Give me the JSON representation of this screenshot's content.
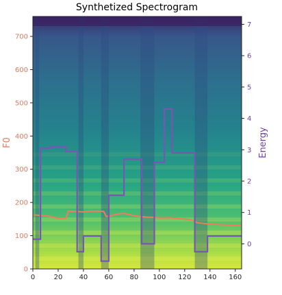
{
  "chart_data": {
    "type": "line",
    "title": "Synthetized Spectrogram",
    "xlabel": "",
    "ylabel_left": "F0",
    "ylabel_right": "Energy",
    "xlim": [
      0,
      165
    ],
    "ylim_left": [
      0,
      760
    ],
    "ylim_right": [
      -0.8,
      7.25
    ],
    "x_ticks": [
      0,
      20,
      40,
      60,
      80,
      100,
      120,
      140,
      160
    ],
    "y_left_ticks": [
      0,
      100,
      200,
      300,
      400,
      500,
      600,
      700
    ],
    "y_right_ticks": [
      0,
      1,
      2,
      3,
      4,
      5,
      6,
      7
    ],
    "grid": false,
    "colors": {
      "f0": "#f07c5c",
      "energy": "#7a55b5",
      "left_axis_text": "#e07a5f",
      "right_axis_text": "#6a3fa8"
    },
    "background": "spectrogram (viridis colormap)",
    "series": [
      {
        "axis": "left",
        "points": [
          [
            0,
            163
          ],
          [
            12,
            159
          ],
          [
            20,
            152
          ],
          [
            26,
            152
          ],
          [
            28,
            174
          ],
          [
            34,
            173
          ],
          [
            40,
            172
          ],
          [
            50,
            174
          ],
          [
            56,
            173
          ],
          [
            58,
            158
          ],
          [
            62,
            160
          ],
          [
            66,
            165
          ],
          [
            72,
            167
          ],
          [
            76,
            164
          ],
          [
            80,
            160
          ],
          [
            84,
            158
          ],
          [
            90,
            156
          ],
          [
            96,
            155
          ],
          [
            102,
            153
          ],
          [
            108,
            154
          ],
          [
            114,
            152
          ],
          [
            120,
            150
          ],
          [
            126,
            147
          ],
          [
            130,
            139
          ],
          [
            140,
            135
          ],
          [
            150,
            133
          ],
          [
            165,
            130
          ]
        ]
      },
      {
        "axis": "right",
        "steps": [
          [
            0,
            0.15
          ],
          [
            6,
            0.15
          ],
          [
            6,
            3.05
          ],
          [
            14,
            3.05
          ],
          [
            14,
            3.1
          ],
          [
            26,
            3.1
          ],
          [
            26,
            2.95
          ],
          [
            35,
            2.95
          ],
          [
            35,
            -0.25
          ],
          [
            40,
            -0.25
          ],
          [
            40,
            0.25
          ],
          [
            54,
            0.25
          ],
          [
            54,
            -0.55
          ],
          [
            60,
            -0.55
          ],
          [
            60,
            1.55
          ],
          [
            72,
            1.55
          ],
          [
            72,
            2.7
          ],
          [
            86,
            2.7
          ],
          [
            86,
            0
          ],
          [
            96,
            0
          ],
          [
            96,
            2.6
          ],
          [
            104,
            2.6
          ],
          [
            104,
            4.3
          ],
          [
            110,
            4.3
          ],
          [
            110,
            2.9
          ],
          [
            128,
            2.9
          ],
          [
            128,
            -0.25
          ],
          [
            138,
            -0.25
          ],
          [
            138,
            0.25
          ],
          [
            165,
            0.25
          ]
        ]
      }
    ]
  }
}
